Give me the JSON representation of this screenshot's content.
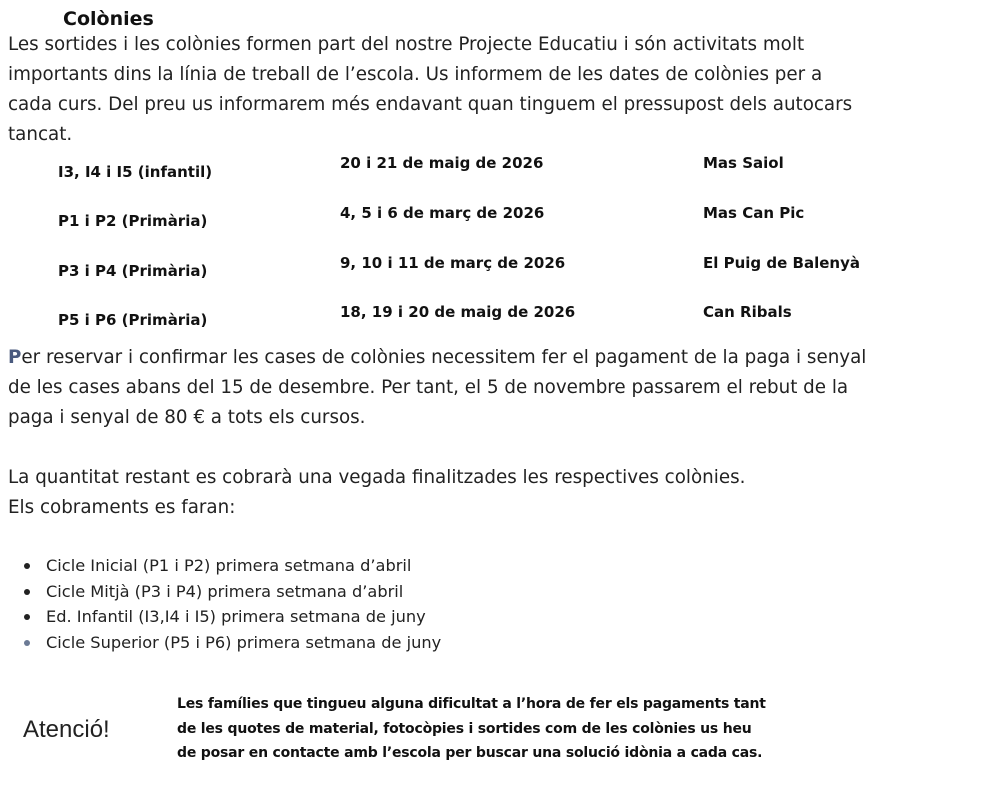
{
  "title": "Colònies",
  "intro_lines": [
    "Les sortides i les colònies formen part del nostre Projecte Educatiu i són activitats molt",
    "importants dins la línia de treball de l’escola. Us informem de les dates de colònies per a",
    "cada curs. Del preu us informarem més endavant quan tinguem el pressupost dels autocars",
    "tancat."
  ],
  "schedule": [
    {
      "course": "I3, I4 i I5 (infantil)",
      "dates": "20 i 21 de maig de 2026",
      "place": "Mas Saiol"
    },
    {
      "course": "P1 i P2 (Primària)",
      "dates": "4, 5 i 6 de març de 2026",
      "place": "Mas Can Pic"
    },
    {
      "course": "P3 i P4 (Primària)",
      "dates": "9, 10 i 11 de març de 2026",
      "place": "El Puig de Balenyà"
    },
    {
      "course": "P5 i P6 (Primària)",
      "dates": "18, 19 i 20 de maig de 2026",
      "place": "Can Ribals"
    }
  ],
  "payment": {
    "first_letter": "P",
    "line1_rest": "er reservar i confirmar les cases de colònies necessitem fer el pagament de la paga i senyal",
    "line2": "de les cases abans del 15 de desembre. Per tant, el 5 de novembre passarem el rebut de la",
    "line3": "paga i senyal de 80 € a tots els cursos."
  },
  "remaining_lines": [
    "La quantitat restant es cobrarà una vegada finalitzades les respectives colònies.",
    "Els cobraments es faran:"
  ],
  "charges": [
    "Cicle Inicial (P1 i P2) primera setmana d’abril",
    "Cicle Mitjà (P3 i P4) primera setmana d’abril",
    "Ed. Infantil (I3,I4 i I5) primera setmana de juny",
    "Cicle Superior (P5 i P6) primera setmana de juny"
  ],
  "notice": {
    "label": "Atenció!",
    "lines": [
      "Les famílies que tingueu alguna dificultat a l’hora de fer els pagaments tant",
      "de les quotes de material, fotocòpies i sortides com de les colònies us heu",
      "de posar en contacte amb l’escola per buscar una solució idònia a cada cas."
    ]
  },
  "colors": {
    "text": "#222222",
    "initial_accent": "#4a5a7e"
  }
}
